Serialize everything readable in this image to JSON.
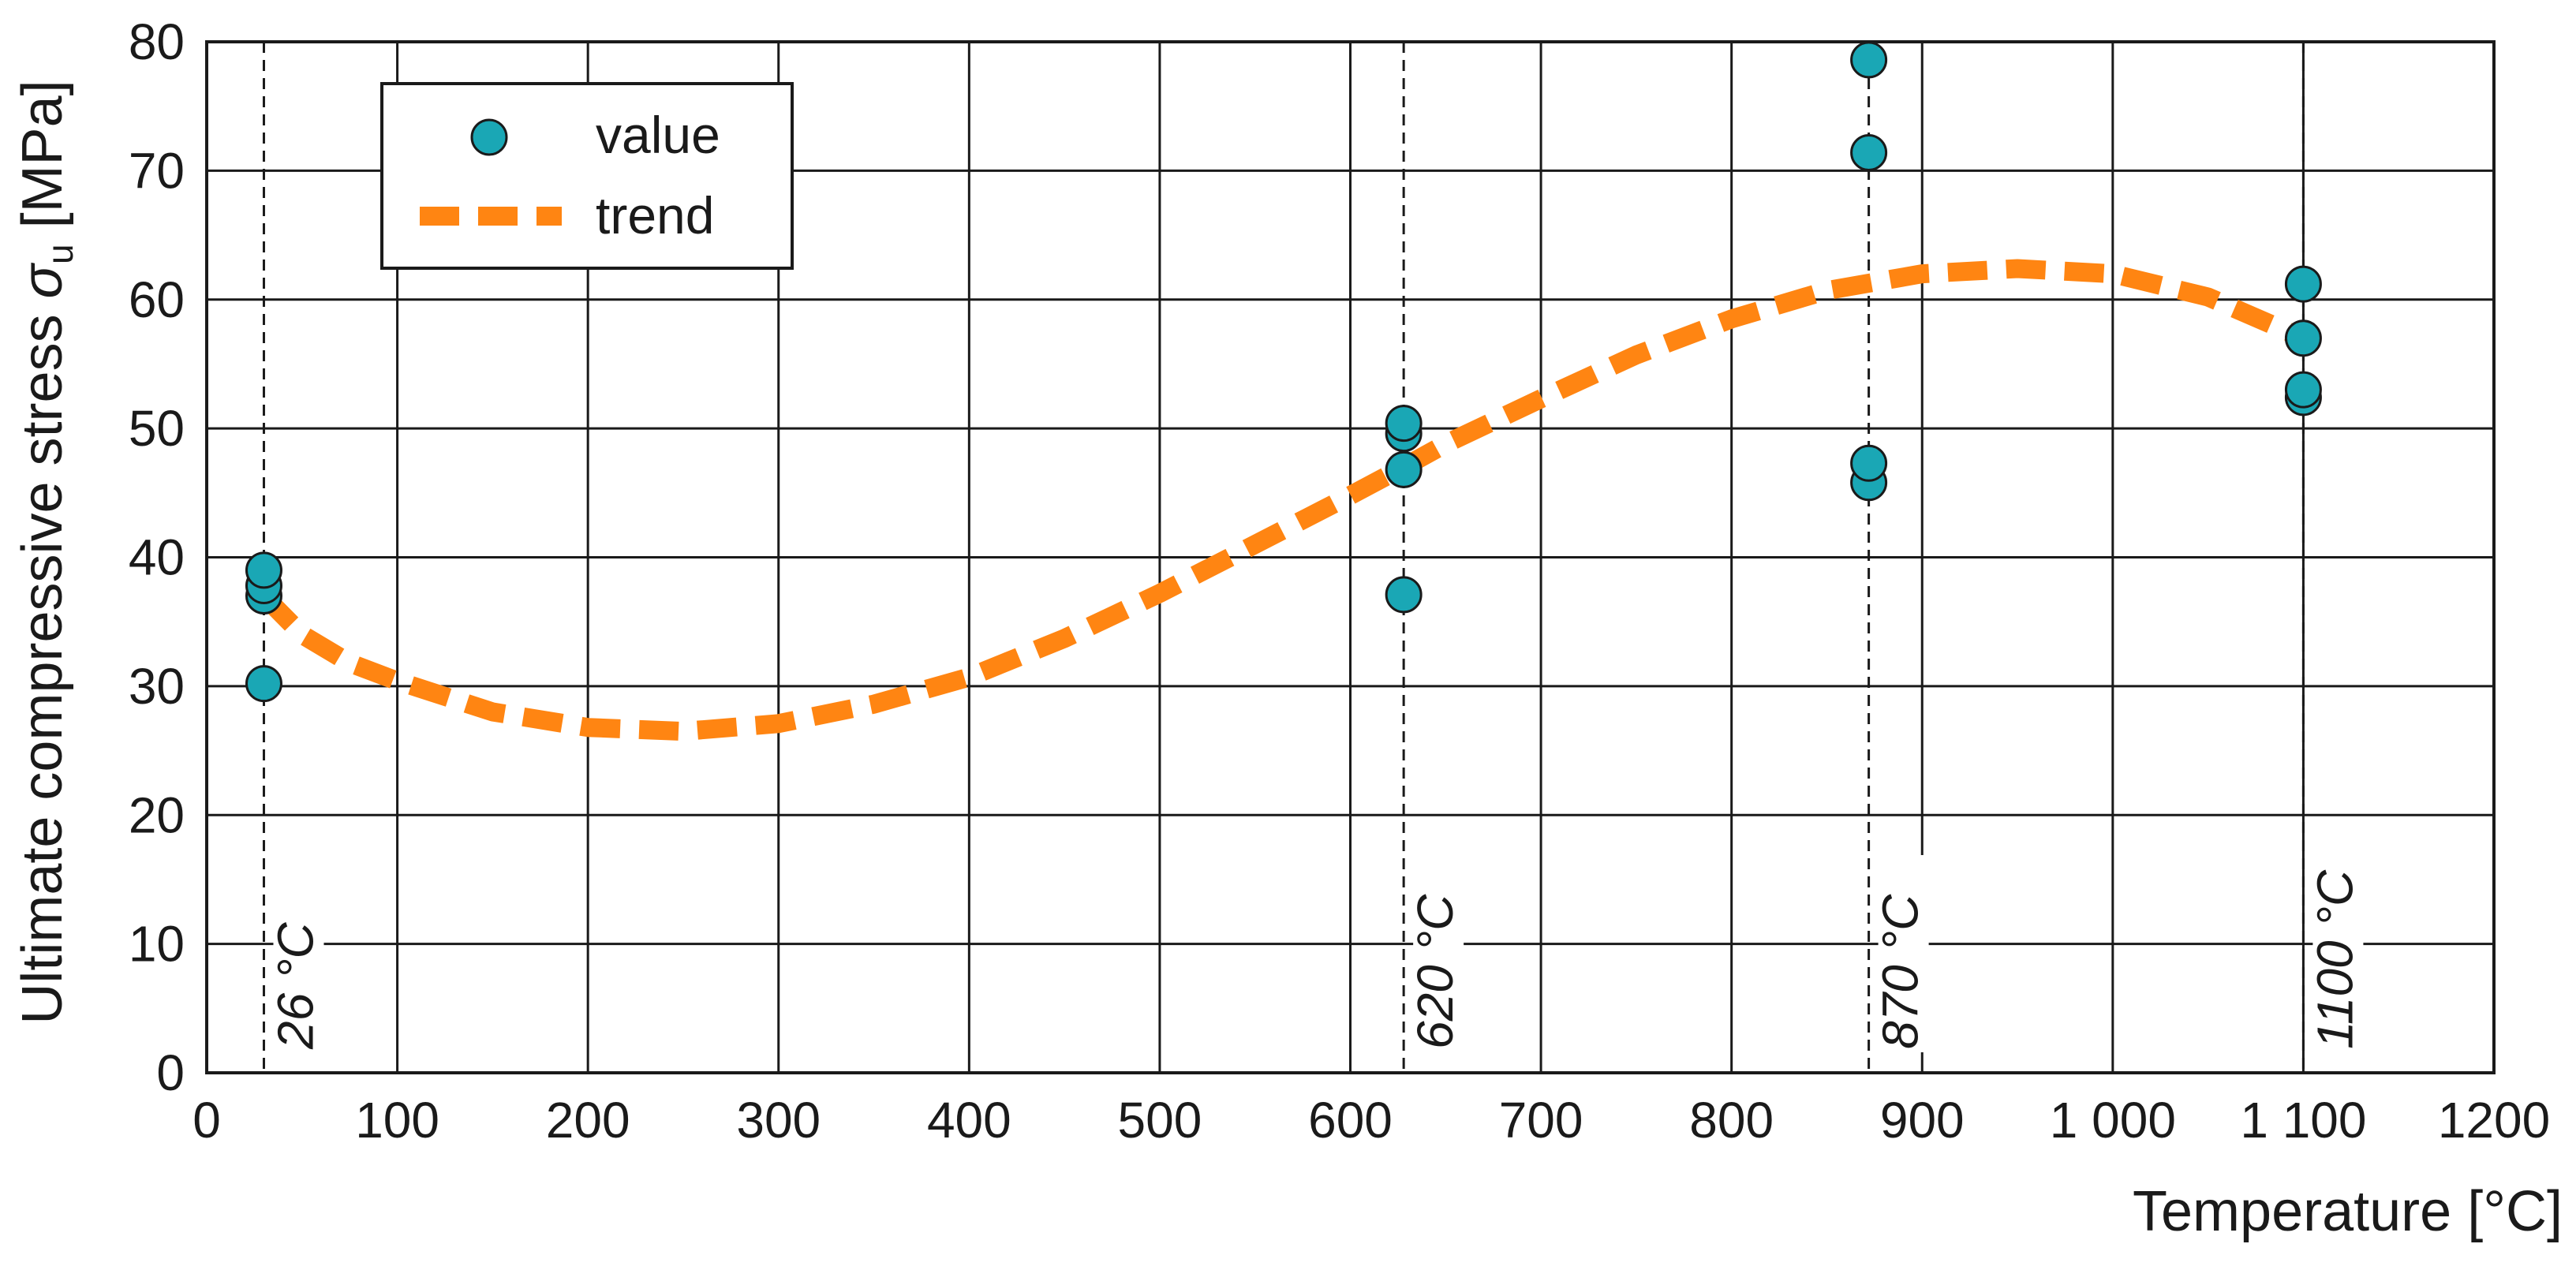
{
  "chart_data": {
    "type": "scatter",
    "title": "",
    "xlabel": "Temperature [°C]",
    "ylabel": {
      "main": "Ultimate compressive stress ",
      "symbol": "σ",
      "subscript": "u",
      "unit": " [MPa]"
    },
    "xlim": [
      0,
      1200
    ],
    "ylim": [
      0,
      80
    ],
    "x_ticks": [
      0,
      100,
      200,
      300,
      400,
      500,
      600,
      700,
      800,
      900,
      1000,
      1100,
      1200
    ],
    "x_tick_labels": [
      "0",
      "100",
      "200",
      "300",
      "400",
      "500",
      "600",
      "700",
      "800",
      "900",
      "1 000",
      "1 100",
      "1200"
    ],
    "y_ticks": [
      0,
      10,
      20,
      30,
      40,
      50,
      60,
      70,
      80
    ],
    "y_tick_labels": [
      "0",
      "10",
      "20",
      "30",
      "40",
      "50",
      "60",
      "70",
      "80"
    ],
    "grid": true,
    "legend": {
      "position": "top-left",
      "entries": [
        "value",
        "trend"
      ]
    },
    "colors": {
      "value": "#1aa7b5",
      "trend": "#ff8512",
      "marker_edge": "#1a1a1a",
      "grid": "#1a1a1a"
    },
    "series": [
      {
        "name": "value",
        "kind": "scatter",
        "points": [
          [
            30,
            30.2
          ],
          [
            30,
            37.0
          ],
          [
            30,
            37.8
          ],
          [
            30,
            39.0
          ],
          [
            628,
            37.1
          ],
          [
            628,
            46.8
          ],
          [
            628,
            49.6
          ],
          [
            628,
            50.4
          ],
          [
            872,
            45.8
          ],
          [
            872,
            47.3
          ],
          [
            872,
            71.4
          ],
          [
            872,
            78.6
          ],
          [
            1100,
            52.4
          ],
          [
            1100,
            53.0
          ],
          [
            1100,
            57.0
          ],
          [
            1100,
            61.2
          ]
        ]
      },
      {
        "name": "trend",
        "kind": "line",
        "style": "dashed",
        "points": [
          [
            30,
            37.0
          ],
          [
            50,
            34.0
          ],
          [
            75,
            31.8
          ],
          [
            100,
            30.4
          ],
          [
            150,
            28.0
          ],
          [
            200,
            26.8
          ],
          [
            250,
            26.5
          ],
          [
            300,
            27.1
          ],
          [
            350,
            28.6
          ],
          [
            400,
            30.7
          ],
          [
            450,
            33.7
          ],
          [
            500,
            37.2
          ],
          [
            550,
            41.0
          ],
          [
            600,
            44.8
          ],
          [
            628,
            47.0
          ],
          [
            650,
            48.8
          ],
          [
            700,
            52.3
          ],
          [
            750,
            55.7
          ],
          [
            800,
            58.5
          ],
          [
            850,
            60.7
          ],
          [
            900,
            62.0
          ],
          [
            950,
            62.4
          ],
          [
            1000,
            62.0
          ],
          [
            1050,
            60.2
          ],
          [
            1100,
            57.0
          ]
        ]
      }
    ],
    "reference_lines": [
      {
        "x": 30,
        "label": "26 °C"
      },
      {
        "x": 628,
        "label": "620 °C"
      },
      {
        "x": 872,
        "label": "870 °C"
      },
      {
        "x": 1100,
        "label": "1100 °C"
      }
    ]
  }
}
